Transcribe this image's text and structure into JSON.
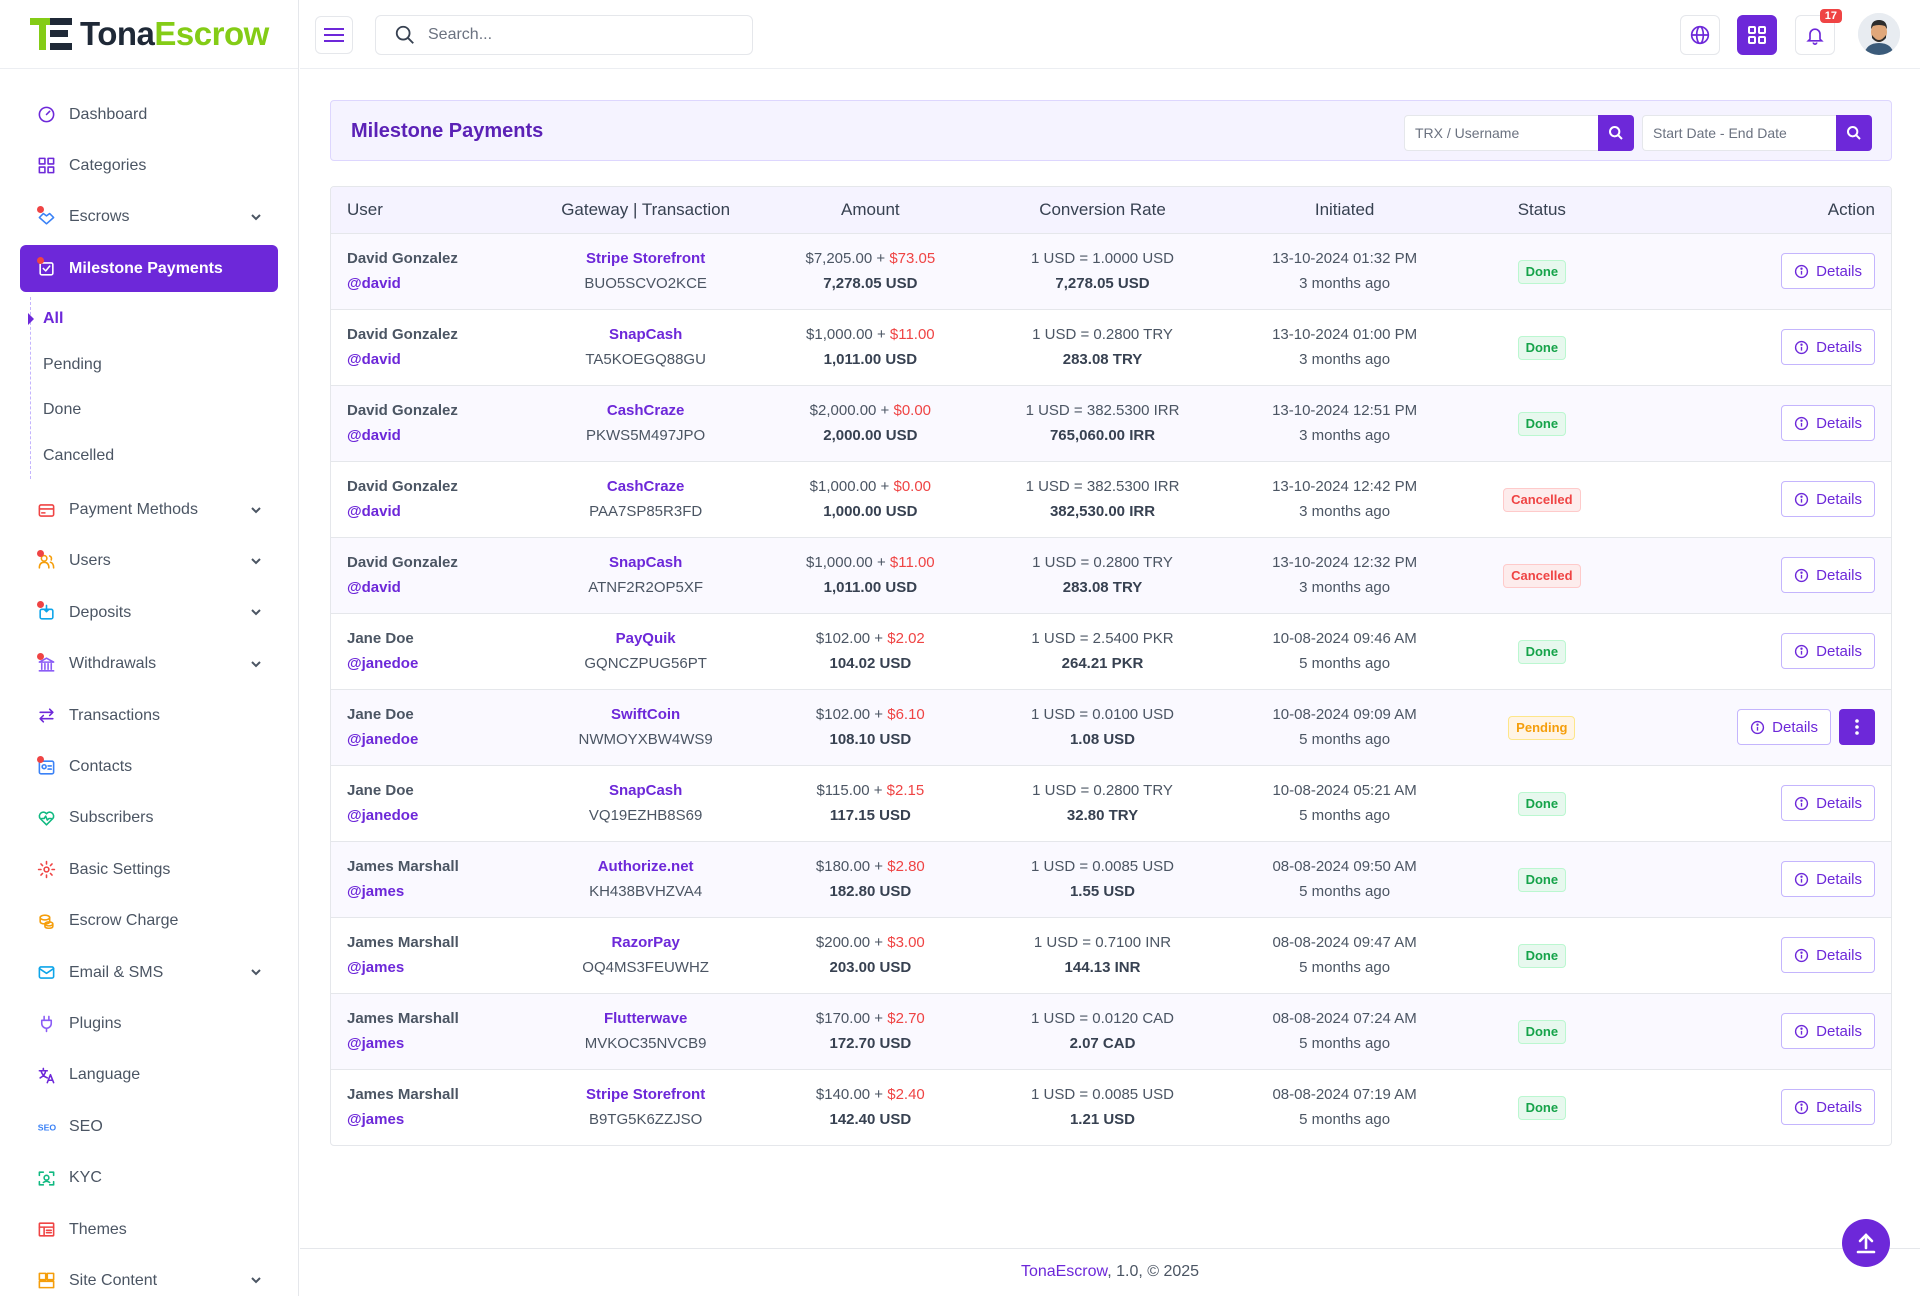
{
  "brand": {
    "part1": "Tona",
    "part2": "Escrow"
  },
  "search": {
    "placeholder": "Search..."
  },
  "topbar": {
    "notif_count": "17"
  },
  "sidebar": {
    "items": [
      {
        "label": "Dashboard",
        "icon": "dashboard-icon"
      },
      {
        "label": "Categories",
        "icon": "grid-icon"
      },
      {
        "label": "Escrows",
        "icon": "handshake-icon"
      },
      {
        "label": "Milestone Payments",
        "icon": "milestone-icon"
      },
      {
        "label": "Payment Methods",
        "icon": "credit-card-icon"
      },
      {
        "label": "Users",
        "icon": "users-icon"
      },
      {
        "label": "Deposits",
        "icon": "deposit-icon"
      },
      {
        "label": "Withdrawals",
        "icon": "bank-icon"
      },
      {
        "label": "Transactions",
        "icon": "transfer-icon"
      },
      {
        "label": "Contacts",
        "icon": "contact-icon"
      },
      {
        "label": "Subscribers",
        "icon": "heart-pulse-icon"
      },
      {
        "label": "Basic Settings",
        "icon": "gear-icon"
      },
      {
        "label": "Escrow Charge",
        "icon": "coins-icon"
      },
      {
        "label": "Email & SMS",
        "icon": "mail-icon"
      },
      {
        "label": "Plugins",
        "icon": "plug-icon"
      },
      {
        "label": "Language",
        "icon": "translate-icon"
      },
      {
        "label": "SEO",
        "icon": "seo-icon"
      },
      {
        "label": "KYC",
        "icon": "face-scan-icon"
      },
      {
        "label": "Themes",
        "icon": "layout-icon"
      },
      {
        "label": "Site Content",
        "icon": "content-icon"
      }
    ],
    "submenu": [
      "All",
      "Pending",
      "Done",
      "Cancelled"
    ]
  },
  "page": {
    "title": "Milestone Payments",
    "filter_trx_placeholder": "TRX / Username",
    "filter_date_placeholder": "Start Date - End Date"
  },
  "table": {
    "headers": [
      "User",
      "Gateway | Transaction",
      "Amount",
      "Conversion Rate",
      "Initiated",
      "Status",
      "Action"
    ],
    "details_label": "Details",
    "rows": [
      {
        "name": "David Gonzalez",
        "handle": "@david",
        "gateway": "Stripe Storefront",
        "trx": "BUO5SCVO2KCE",
        "amount": "$7,205.00 + ",
        "charge": "$73.05",
        "total": "7,278.05 USD",
        "rate": "1 USD = 1.0000 USD",
        "final": "7,278.05 USD",
        "date": "13-10-2024 01:32 PM",
        "ago": "3 months ago",
        "status": "Done"
      },
      {
        "name": "David Gonzalez",
        "handle": "@david",
        "gateway": "SnapCash",
        "trx": "TA5KOEGQ88GU",
        "amount": "$1,000.00 + ",
        "charge": "$11.00",
        "total": "1,011.00 USD",
        "rate": "1 USD = 0.2800 TRY",
        "final": "283.08 TRY",
        "date": "13-10-2024 01:00 PM",
        "ago": "3 months ago",
        "status": "Done"
      },
      {
        "name": "David Gonzalez",
        "handle": "@david",
        "gateway": "CashCraze",
        "trx": "PKWS5M497JPO",
        "amount": "$2,000.00 + ",
        "charge": "$0.00",
        "total": "2,000.00 USD",
        "rate": "1 USD = 382.5300 IRR",
        "final": "765,060.00 IRR",
        "date": "13-10-2024 12:51 PM",
        "ago": "3 months ago",
        "status": "Done"
      },
      {
        "name": "David Gonzalez",
        "handle": "@david",
        "gateway": "CashCraze",
        "trx": "PAA7SP85R3FD",
        "amount": "$1,000.00 + ",
        "charge": "$0.00",
        "total": "1,000.00 USD",
        "rate": "1 USD = 382.5300 IRR",
        "final": "382,530.00 IRR",
        "date": "13-10-2024 12:42 PM",
        "ago": "3 months ago",
        "status": "Cancelled"
      },
      {
        "name": "David Gonzalez",
        "handle": "@david",
        "gateway": "SnapCash",
        "trx": "ATNF2R2OP5XF",
        "amount": "$1,000.00 + ",
        "charge": "$11.00",
        "total": "1,011.00 USD",
        "rate": "1 USD = 0.2800 TRY",
        "final": "283.08 TRY",
        "date": "13-10-2024 12:32 PM",
        "ago": "3 months ago",
        "status": "Cancelled"
      },
      {
        "name": "Jane Doe",
        "handle": "@janedoe",
        "gateway": "PayQuik",
        "trx": "GQNCZPUG56PT",
        "amount": "$102.00 + ",
        "charge": "$2.02",
        "total": "104.02 USD",
        "rate": "1 USD = 2.5400 PKR",
        "final": "264.21 PKR",
        "date": "10-08-2024 09:46 AM",
        "ago": "5 months ago",
        "status": "Done"
      },
      {
        "name": "Jane Doe",
        "handle": "@janedoe",
        "gateway": "SwiftCoin",
        "trx": "NWMOYXBW4WS9",
        "amount": "$102.00 + ",
        "charge": "$6.10",
        "total": "108.10 USD",
        "rate": "1 USD = 0.0100 USD",
        "final": "1.08 USD",
        "date": "10-08-2024 09:09 AM",
        "ago": "5 months ago",
        "status": "Pending"
      },
      {
        "name": "Jane Doe",
        "handle": "@janedoe",
        "gateway": "SnapCash",
        "trx": "VQ19EZHB8S69",
        "amount": "$115.00 + ",
        "charge": "$2.15",
        "total": "117.15 USD",
        "rate": "1 USD = 0.2800 TRY",
        "final": "32.80 TRY",
        "date": "10-08-2024 05:21 AM",
        "ago": "5 months ago",
        "status": "Done"
      },
      {
        "name": "James Marshall",
        "handle": "@james",
        "gateway": "Authorize.net",
        "trx": "KH438BVHZVA4",
        "amount": "$180.00 + ",
        "charge": "$2.80",
        "total": "182.80 USD",
        "rate": "1 USD = 0.0085 USD",
        "final": "1.55 USD",
        "date": "08-08-2024 09:50 AM",
        "ago": "5 months ago",
        "status": "Done"
      },
      {
        "name": "James Marshall",
        "handle": "@james",
        "gateway": "RazorPay",
        "trx": "OQ4MS3FEUWHZ",
        "amount": "$200.00 + ",
        "charge": "$3.00",
        "total": "203.00 USD",
        "rate": "1 USD = 0.7100 INR",
        "final": "144.13 INR",
        "date": "08-08-2024 09:47 AM",
        "ago": "5 months ago",
        "status": "Done"
      },
      {
        "name": "James Marshall",
        "handle": "@james",
        "gateway": "Flutterwave",
        "trx": "MVKOC35NVCB9",
        "amount": "$170.00 + ",
        "charge": "$2.70",
        "total": "172.70 USD",
        "rate": "1 USD = 0.0120 CAD",
        "final": "2.07 CAD",
        "date": "08-08-2024 07:24 AM",
        "ago": "5 months ago",
        "status": "Done"
      },
      {
        "name": "James Marshall",
        "handle": "@james",
        "gateway": "Stripe Storefront",
        "trx": "B9TG5K6ZZJSO",
        "amount": "$140.00 + ",
        "charge": "$2.40",
        "total": "142.40 USD",
        "rate": "1 USD = 0.0085 USD",
        "final": "1.21 USD",
        "date": "08-08-2024 07:19 AM",
        "ago": "5 months ago",
        "status": "Done"
      }
    ]
  },
  "footer": {
    "brand": "TonaEscrow",
    "rest": ", 1.0, © 2025"
  },
  "colors": {
    "accent": "#6d28d9",
    "done": "#16a34a",
    "cancelled": "#ef4444",
    "pending": "#f59e0b",
    "lime": "#84cc16"
  }
}
